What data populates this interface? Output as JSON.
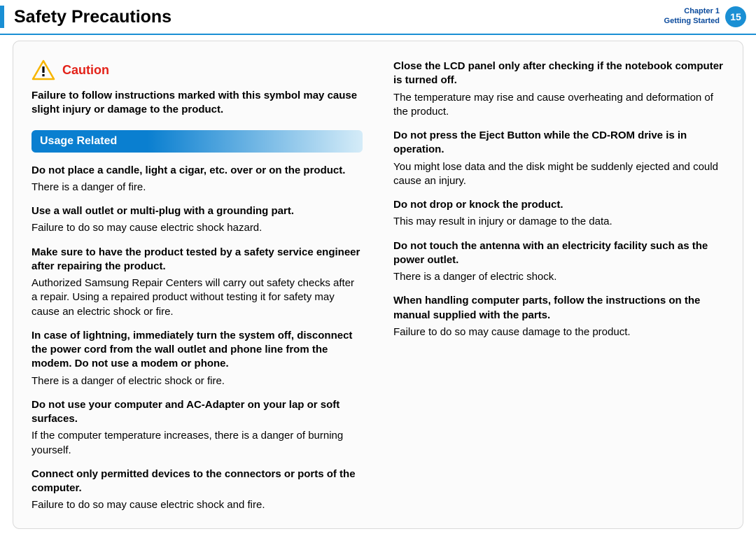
{
  "colors": {
    "accent_blue": "#1a8fd4",
    "caution_red": "#e32219",
    "icon_yellow": "#f7b500",
    "header_border": "#1a8fd4",
    "chapter_text": "#0a4a9c",
    "badge_bg": "#1a8fd4",
    "section_grad_start": "#0a7fd0",
    "section_grad_end": "#d5ecf8",
    "content_border": "#d9d9d9",
    "content_bg": "#fbfbfb"
  },
  "header": {
    "title": "Safety Precautions",
    "chapter_line1": "Chapter 1",
    "chapter_line2": "Getting Started",
    "page_number": "15"
  },
  "caution": {
    "label": "Caution",
    "intro": "Failure to follow instructions marked with this symbol may cause slight injury or damage to the product."
  },
  "section": {
    "title": "Usage Related"
  },
  "items": [
    {
      "head": "Do not place a candle, light a cigar, etc. over or on the product.",
      "body": "There is a danger of fire."
    },
    {
      "head": "Use a wall outlet or multi-plug with a grounding part.",
      "body": "Failure to do so may cause electric shock hazard."
    },
    {
      "head": "Make sure to have the product tested by a safety service engineer after repairing the product.",
      "body": "Authorized Samsung Repair Centers will carry out safety checks after a repair. Using a repaired product without testing it for safety may cause an electric shock or fire."
    },
    {
      "head": "In case of lightning, immediately turn the system off, disconnect the power cord from the wall outlet and phone line from the modem. Do not use a modem or phone.",
      "body": "There is a danger of electric shock or fire."
    },
    {
      "head": "Do not use your computer and AC-Adapter on your lap or soft surfaces.",
      "body": "If the computer temperature increases, there is a danger of burning yourself."
    },
    {
      "head": "Connect only permitted devices to the connectors or ports of the computer.",
      "body": "Failure to do so may cause electric shock and fire."
    },
    {
      "head": "Close the LCD panel only after checking if the notebook computer is turned off.",
      "body": "The temperature may rise and cause overheating and deformation of the product."
    },
    {
      "head": "Do not press the Eject Button while the CD-ROM drive is in operation.",
      "body": "You might lose data and the disk might be suddenly ejected and could cause an injury."
    },
    {
      "head": "Do not drop or knock the product.",
      "body": "This may result in injury or damage to the data."
    },
    {
      "head": "Do not touch the antenna with an electricity facility such as the power outlet.",
      "body": "There is a danger of electric shock."
    },
    {
      "head": "When handling computer parts, follow the instructions on the manual supplied with the parts.",
      "body": "Failure to do so may cause damage to the product."
    }
  ]
}
